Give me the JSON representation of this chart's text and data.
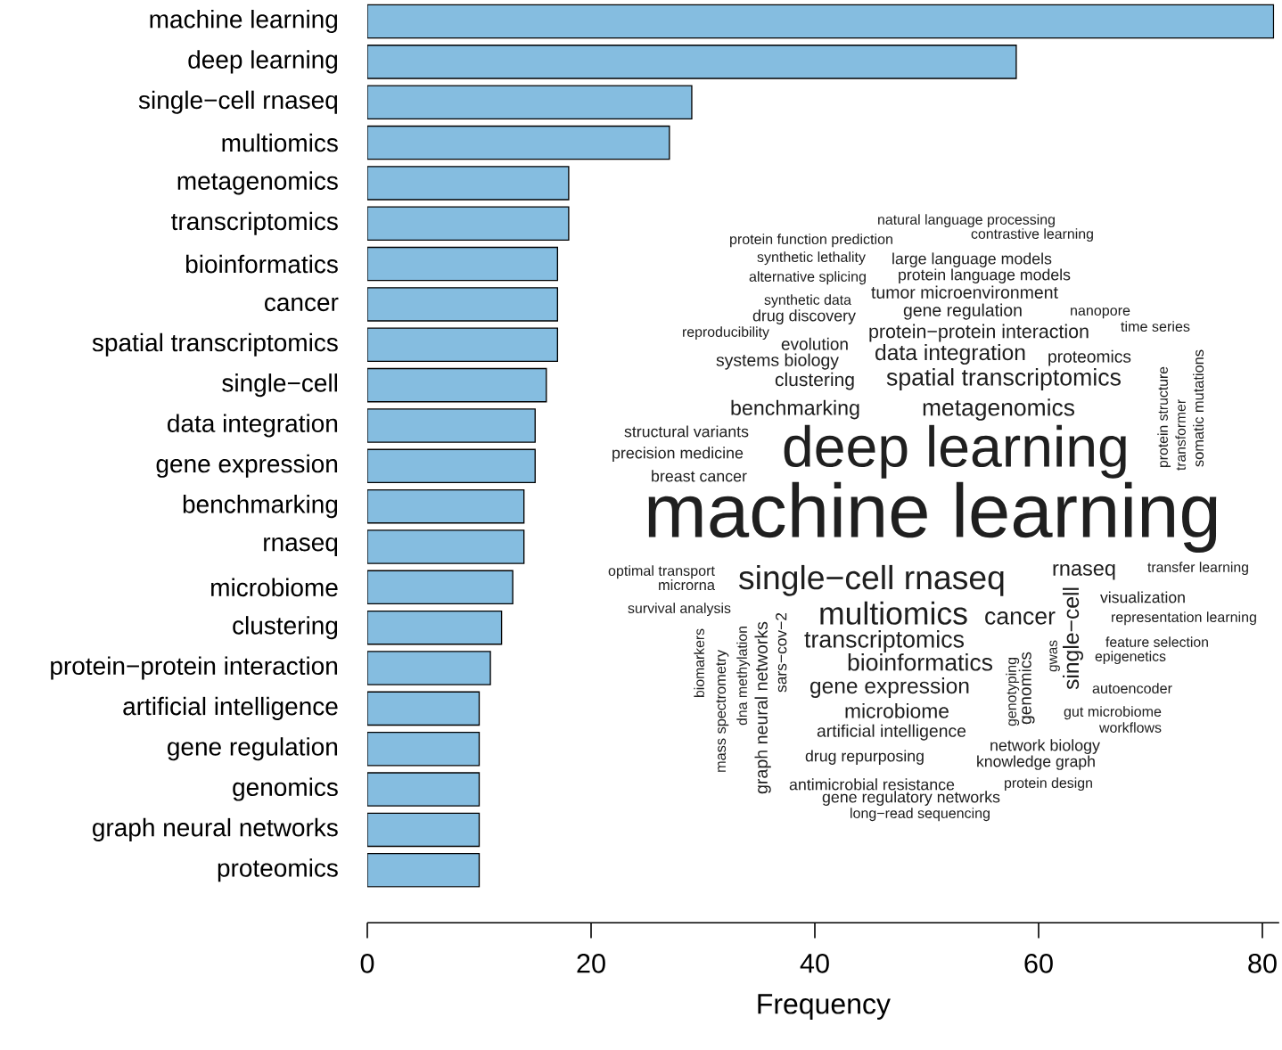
{
  "chart_data": {
    "type": "bar",
    "orientation": "horizontal",
    "xlabel": "Frequency",
    "categories": [
      "machine learning",
      "deep learning",
      "single−cell rnaseq",
      "multiomics",
      "metagenomics",
      "transcriptomics",
      "bioinformatics",
      "cancer",
      "spatial transcriptomics",
      "single−cell",
      "data integration",
      "gene expression",
      "benchmarking",
      "rnaseq",
      "microbiome",
      "clustering",
      "protein−protein interaction",
      "artificial intelligence",
      "gene regulation",
      "genomics",
      "graph neural networks",
      "proteomics"
    ],
    "values": [
      81,
      58,
      29,
      27,
      18,
      18,
      17,
      17,
      17,
      16,
      15,
      15,
      14,
      14,
      13,
      12,
      11,
      10,
      10,
      10,
      10,
      10
    ],
    "color": "#85bde0",
    "xlim": [
      0,
      81.5
    ],
    "xticks": [
      0,
      20,
      40,
      60,
      80
    ],
    "grid": false,
    "annotations": [
      "natural language processing",
      "contrastive learning",
      "protein function prediction",
      "synthetic lethality",
      "large language models",
      "alternative splicing",
      "protein language models",
      "tumor microenvironment",
      "synthetic data",
      "drug discovery",
      "gene regulation",
      "nanopore",
      "reproducibility",
      "time series",
      "protein−protein interaction",
      "evolution",
      "data integration",
      "proteomics",
      "systems biology",
      "clustering",
      "spatial transcriptomics",
      "benchmarking",
      "metagenomics",
      "protein structure",
      "transformer",
      "somatic mutations",
      "structural variants",
      "precision medicine",
      "deep learning",
      "breast cancer",
      "machine learning",
      "optimal transport",
      "microrna",
      "single−cell rnaseq",
      "rnaseq",
      "transfer learning",
      "survival analysis",
      "visualization",
      "multiomics",
      "cancer",
      "single−cell",
      "representation learning",
      "transcriptomics",
      "feature selection",
      "epigenetics",
      "bioinformatics",
      "gwas",
      "genomics",
      "genotyping",
      "biomarkers",
      "mass spectrometry",
      "dna methylation",
      "graph neural networks",
      "sars−cov−2",
      "gene expression",
      "autoencoder",
      "microbiome",
      "gut microbiome",
      "workflows",
      "artificial intelligence",
      "network biology",
      "drug repurposing",
      "knowledge graph",
      "antimicrobial resistance",
      "protein design",
      "gene regulatory networks",
      "long−read sequencing"
    ]
  }
}
